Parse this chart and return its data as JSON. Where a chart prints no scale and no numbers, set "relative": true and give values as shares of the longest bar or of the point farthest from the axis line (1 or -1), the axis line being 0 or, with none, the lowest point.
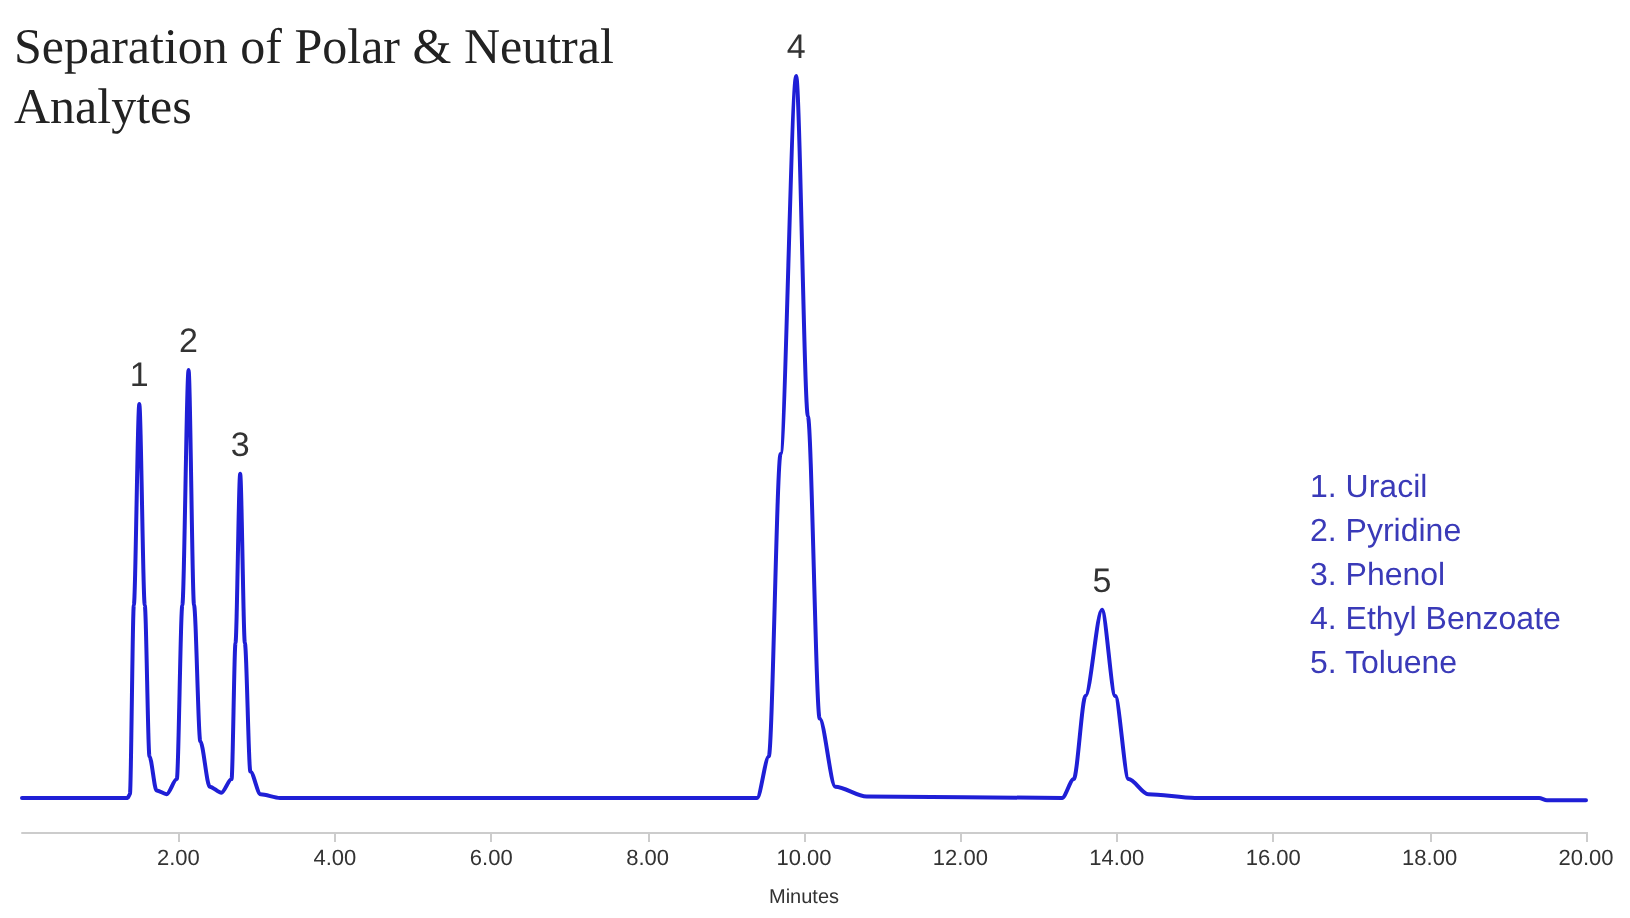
{
  "chart_data": {
    "type": "line",
    "title": "Separation of Polar & Neutral Analytes",
    "xlabel": "Minutes",
    "relative": true,
    "xlim": [
      0,
      20
    ],
    "xticks": [
      {
        "value": 2,
        "label": "2.00"
      },
      {
        "value": 4,
        "label": "4.00"
      },
      {
        "value": 6,
        "label": "6.00"
      },
      {
        "value": 8,
        "label": "8.00"
      },
      {
        "value": 10,
        "label": "10.00"
      },
      {
        "value": 12,
        "label": "12.00"
      },
      {
        "value": 14,
        "label": "14.00"
      },
      {
        "value": 16,
        "label": "16.00"
      },
      {
        "value": 18,
        "label": "18.00"
      },
      {
        "value": 20,
        "label": "20.00"
      }
    ],
    "x": [
      0,
      1.35,
      1.38,
      1.43,
      1.5,
      1.57,
      1.63,
      1.72,
      1.85,
      1.98,
      2.05,
      2.13,
      2.2,
      2.28,
      2.4,
      2.55,
      2.68,
      2.73,
      2.79,
      2.85,
      2.92,
      3.05,
      3.3,
      9.4,
      9.55,
      9.7,
      9.9,
      10.05,
      10.2,
      10.4,
      10.8,
      13.3,
      13.45,
      13.6,
      13.81,
      13.98,
      14.15,
      14.4,
      15,
      19.4,
      19.5,
      20
    ],
    "series": [
      {
        "color": "#1f1fd6",
        "values": [
          0.045,
          0.045,
          0.05,
          0.3,
          0.566,
          0.3,
          0.1,
          0.055,
          0.05,
          0.07,
          0.3,
          0.611,
          0.3,
          0.12,
          0.06,
          0.052,
          0.07,
          0.25,
          0.474,
          0.25,
          0.08,
          0.05,
          0.045,
          0.045,
          0.1,
          0.5,
          1,
          0.55,
          0.15,
          0.06,
          0.047,
          0.045,
          0.07,
          0.18,
          0.294,
          0.18,
          0.07,
          0.05,
          0.045,
          0.045,
          0.042,
          0.042
        ]
      }
    ],
    "annotations": [
      {
        "text": "1",
        "x": 1.5,
        "y": 0.566
      },
      {
        "text": "2",
        "x": 2.13,
        "y": 0.611
      },
      {
        "text": "3",
        "x": 2.79,
        "y": 0.474
      },
      {
        "text": "4",
        "x": 9.9,
        "y": 1
      },
      {
        "text": "5",
        "x": 13.81,
        "y": 0.294
      },
      "1. Uracil",
      "2. Pyridine",
      "3. Phenol",
      "4. Ethyl Benzoate",
      "5. Toluene"
    ],
    "grid": false,
    "marker": "none",
    "line_style": "solid"
  }
}
